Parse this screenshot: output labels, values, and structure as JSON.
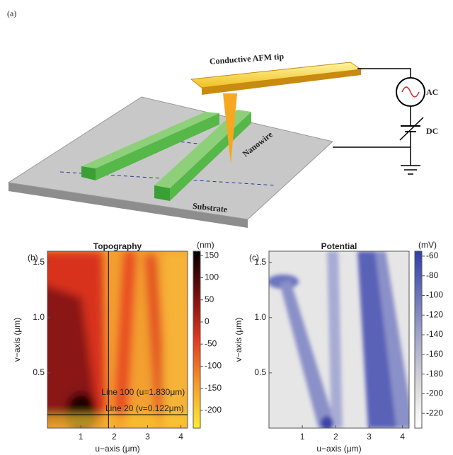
{
  "panel_a": {
    "label": "(a)",
    "tip": "Conductive AFM tip",
    "nanowire": "Nanowire",
    "substrate": "Substrate",
    "ac": "AC",
    "dc": "DC"
  },
  "panel_b": {
    "label": "(b)",
    "title": "Topography",
    "xlabel": "u−axis (μm)",
    "ylabel": "v−axis (μm)",
    "xlim": [
      0,
      4.2
    ],
    "ylim": [
      0,
      1.6
    ],
    "xticks": [
      1,
      2,
      3,
      4
    ],
    "yticks": [
      0.5,
      {
        "value": 1,
        "label": "1.0"
      },
      1.5
    ],
    "colorbar": {
      "unit": "(nm)",
      "lim": [
        -240,
        160
      ],
      "ticks": [
        150,
        100,
        50,
        0,
        -50,
        -100,
        -150,
        -200
      ]
    },
    "annotations": [
      {
        "text": "Line 100 (u=1.830μm)",
        "u": 1.83
      },
      {
        "text": "Line 20 (v=0.122μm)",
        "v": 0.122
      }
    ]
  },
  "panel_c": {
    "label": "(c)",
    "title": "Potential",
    "xlabel": "u−axis (μm)",
    "ylabel": "v−axis (μm)",
    "xlim": [
      0,
      4.2
    ],
    "ylim": [
      0,
      1.6
    ],
    "xticks": [
      1,
      2,
      3,
      4
    ],
    "yticks": [
      0.5,
      {
        "value": 1,
        "label": "1.0"
      },
      1.5
    ],
    "colorbar": {
      "unit": "(mV)",
      "lim": [
        -235,
        -55
      ],
      "ticks": [
        -60,
        -80,
        -100,
        -120,
        -140,
        -160,
        -180,
        -200,
        -220
      ]
    }
  }
}
